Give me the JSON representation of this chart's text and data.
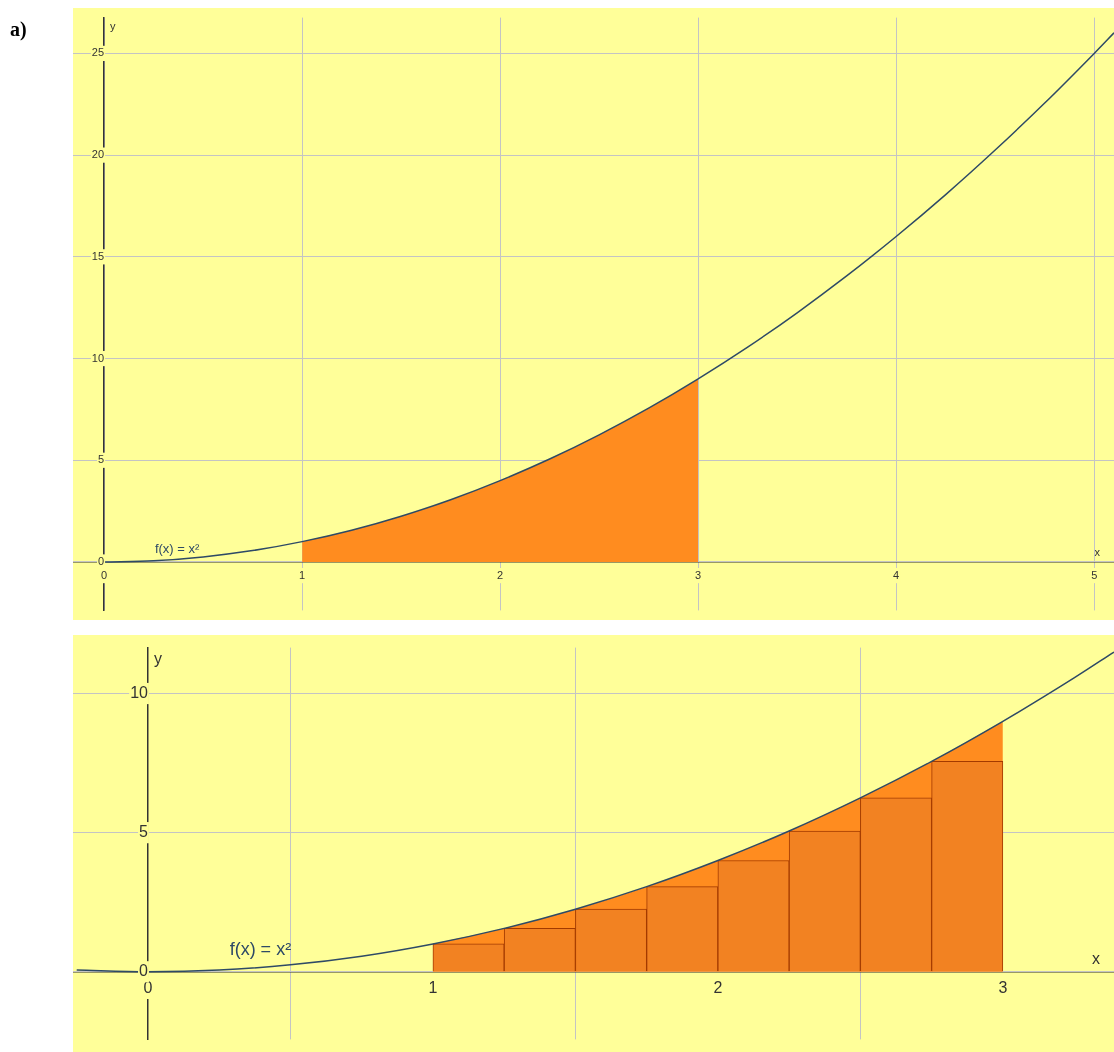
{
  "chart_data": [
    {
      "type": "line",
      "title": "a)",
      "xlabel": "x",
      "ylabel": "y",
      "xlim": [
        -0.157,
        5.1
      ],
      "ylim": [
        -2.38,
        26.76
      ],
      "xticks": [
        0,
        1,
        2,
        3,
        4,
        5
      ],
      "yticks": [
        0,
        5,
        10,
        15,
        20,
        25
      ],
      "grid": true,
      "legend": false,
      "annotations": [
        "f(x) = x²"
      ],
      "series": [
        {
          "color": "#2e4a66",
          "x": [
            0,
            0.25,
            0.5,
            0.75,
            1,
            1.25,
            1.5,
            1.75,
            2,
            2.25,
            2.5,
            2.75,
            3,
            3.25,
            3.5,
            3.75,
            4,
            4.25,
            4.5,
            4.75,
            5,
            5.1
          ],
          "values": [
            0,
            0.06,
            0.25,
            0.56,
            1,
            1.56,
            2.25,
            3.06,
            4,
            5.06,
            6.25,
            7.56,
            9,
            10.56,
            12.25,
            14.06,
            16,
            18.06,
            20.25,
            22.56,
            25,
            26.01
          ]
        },
        {
          "type": "area",
          "color": "#ff8c1f",
          "x": [
            1,
            1.25,
            1.5,
            1.75,
            2,
            2.25,
            2.5,
            2.75,
            3
          ],
          "values": [
            1,
            1.56,
            2.25,
            3.06,
            4,
            5.06,
            6.25,
            7.56,
            9
          ]
        }
      ]
    },
    {
      "type": "line",
      "xlabel": "x",
      "ylabel": "y",
      "xlim": [
        -0.263,
        3.39
      ],
      "ylim": [
        -2.43,
        11.65
      ],
      "xticks": [
        0,
        1,
        2,
        3
      ],
      "yticks": [
        0,
        5,
        10
      ],
      "grid": true,
      "legend": false,
      "annotations": [
        "f(x) = x²"
      ],
      "series": [
        {
          "color": "#2e4a66",
          "x": [
            -0.25,
            0,
            0.25,
            0.5,
            0.75,
            1,
            1.25,
            1.5,
            1.75,
            2,
            2.25,
            2.5,
            2.75,
            3,
            3.25,
            3.39
          ],
          "values": [
            0.06,
            0,
            0.06,
            0.25,
            0.56,
            1,
            1.56,
            2.25,
            3.06,
            4,
            5.06,
            6.25,
            7.56,
            9,
            10.56,
            11.49
          ]
        },
        {
          "type": "area",
          "color": "#ff8c1f",
          "x": [
            1,
            1.25,
            1.5,
            1.75,
            2,
            2.25,
            2.5,
            2.75,
            3
          ],
          "values": [
            1,
            1.56,
            2.25,
            3.06,
            4,
            5.06,
            6.25,
            7.56,
            9
          ]
        },
        {
          "type": "histogram",
          "color": "#f28222",
          "bins": [
            1,
            1.25,
            1.5,
            1.75,
            2,
            2.25,
            2.5,
            2.75,
            3
          ],
          "values": [
            1,
            1.56,
            2.25,
            3.06,
            4,
            5.06,
            6.25,
            7.56
          ]
        }
      ]
    }
  ]
}
